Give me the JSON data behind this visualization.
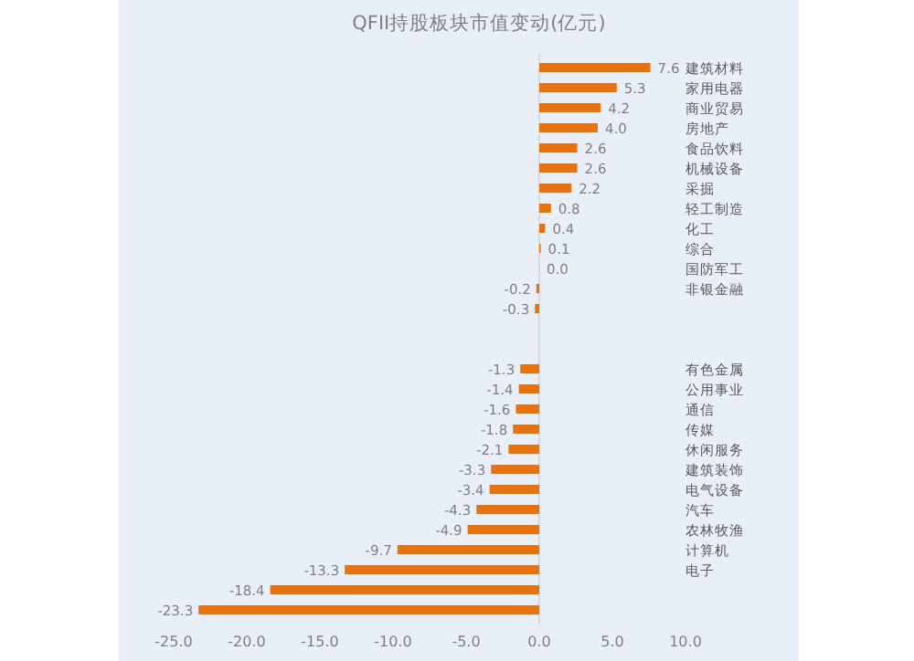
{
  "chart_data": {
    "type": "bar",
    "orientation": "horizontal",
    "title": "QFII持股板块市值变动(亿元)",
    "categories": [
      "建筑材料",
      "家用电器",
      "商业贸易",
      "房地产",
      "食品饮料",
      "机械设备",
      "采掘",
      "轻工制造",
      "化工",
      "综合",
      "国防军工",
      "非银金融",
      null,
      null,
      null,
      "有色金属",
      "公用事业",
      "通信",
      "传媒",
      "休闲服务",
      "建筑装饰",
      "电气设备",
      "汽车",
      "农林牧渔",
      "计算机",
      "电子",
      null,
      null
    ],
    "values": [
      7.6,
      5.3,
      4.2,
      4.0,
      2.6,
      2.6,
      2.2,
      0.8,
      0.4,
      0.1,
      0.0,
      -0.2,
      -0.3,
      null,
      null,
      -1.3,
      -1.4,
      -1.6,
      -1.8,
      -2.1,
      -3.3,
      -3.4,
      -4.3,
      -4.9,
      -9.7,
      -13.3,
      -18.4,
      -23.3
    ],
    "value_labels": [
      "7.6",
      "5.3",
      "4.2",
      "4.0",
      "2.6",
      "2.6",
      "2.2",
      "0.8",
      "0.4",
      "0.1",
      "0.0",
      "-0.2",
      "-0.3",
      null,
      null,
      "-1.3",
      "-1.4",
      "-1.6",
      "-1.8",
      "-2.1",
      "-3.3",
      "-3.4",
      "-4.3",
      "-4.9",
      "-9.7",
      "-13.3",
      "-18.4",
      "-23.3"
    ],
    "color": "#e8720c",
    "xlim": [
      -25,
      10
    ],
    "xticks": [
      {
        "value": -25,
        "label": "-25.0"
      },
      {
        "value": -20,
        "label": "-20.0"
      },
      {
        "value": -15,
        "label": "-15.0"
      },
      {
        "value": -10,
        "label": "-10.0"
      },
      {
        "value": -5,
        "label": "-5.0"
      },
      {
        "value": 0,
        "label": "0.0"
      },
      {
        "value": 5,
        "label": "5.0"
      },
      {
        "value": 10,
        "label": "10.0"
      }
    ]
  }
}
